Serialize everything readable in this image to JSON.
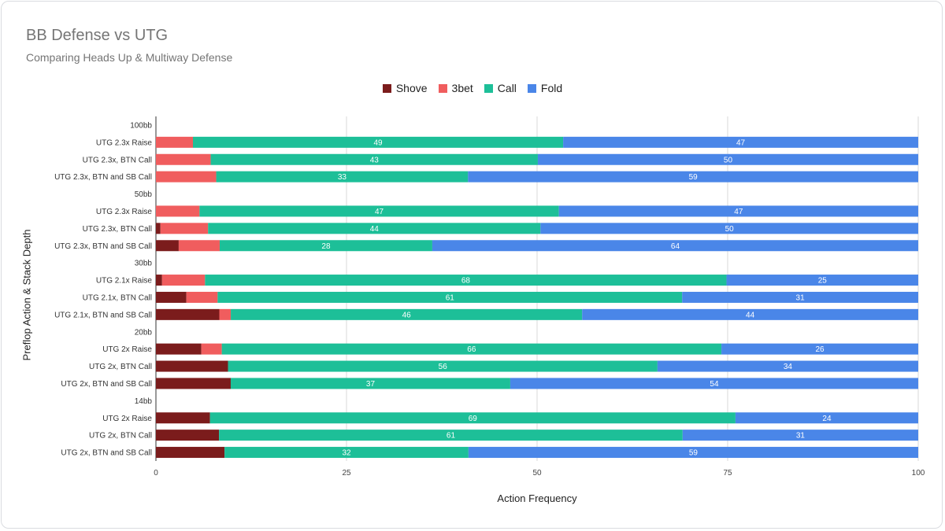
{
  "chart_data": {
    "type": "bar",
    "orientation": "horizontal",
    "stacked": true,
    "title": "BB Defense vs UTG",
    "subtitle": "Comparing Heads Up & Multiway Defense",
    "xlabel": "Action Frequency",
    "ylabel": "Preflop Action & Stack Depth",
    "xlim": [
      0,
      100
    ],
    "xticks": [
      0,
      25,
      50,
      75,
      100
    ],
    "legend_position": "top",
    "categories": [
      "100bb",
      "UTG 2.3x Raise",
      "UTG 2.3x, BTN Call",
      "UTG 2.3x, BTN and SB Call",
      "50bb",
      "UTG 2.3x Raise",
      "UTG 2.3x, BTN Call",
      "UTG 2.3x, BTN and SB Call",
      "30bb",
      "UTG 2.1x Raise",
      "UTG 2.1x, BTN Call",
      "UTG 2.1x, BTN and SB Call",
      "20bb",
      "UTG 2x Raise",
      "UTG 2x, BTN Call",
      "UTG 2x, BTN and SB Call",
      "14bb",
      "UTG 2x Raise",
      "UTG 2x, BTN Call",
      "UTG 2x, BTN and SB Call"
    ],
    "series": [
      {
        "name": "Shove",
        "color": "#7b1c1c",
        "values": [
          null,
          0,
          0,
          0,
          null,
          0,
          0.6,
          3,
          null,
          0.8,
          4,
          8.3,
          null,
          6,
          9.4,
          9.9,
          null,
          7.1,
          8.3,
          9
        ]
      },
      {
        "name": "3bet",
        "color": "#f05d5e",
        "values": [
          null,
          4.9,
          7.2,
          7.9,
          null,
          5.7,
          6.3,
          5.4,
          null,
          5.6,
          4.1,
          1.5,
          null,
          2.7,
          0,
          0,
          null,
          0,
          0,
          0
        ]
      },
      {
        "name": "Call",
        "color": "#1dbf98",
        "values": [
          null,
          49,
          43,
          33,
          null,
          47,
          44,
          28,
          null,
          68,
          61,
          46,
          null,
          66,
          56,
          37,
          null,
          69,
          61,
          32
        ]
      },
      {
        "name": "Fold",
        "color": "#4a86e8",
        "values": [
          null,
          47,
          50,
          59,
          null,
          47,
          50,
          64,
          null,
          25,
          31,
          44,
          null,
          26,
          34,
          54,
          null,
          24,
          31,
          59
        ]
      }
    ],
    "data_labels": {
      "Call": [
        "",
        "49",
        "43",
        "33",
        "",
        "47",
        "44",
        "28",
        "",
        "68",
        "61",
        "46",
        "",
        "66",
        "56",
        "37",
        "",
        "69",
        "61",
        "32"
      ],
      "Fold": [
        "",
        "47",
        "50",
        "59",
        "",
        "47",
        "50",
        "64",
        "",
        "25",
        "31",
        "44",
        "",
        "26",
        "34",
        "54",
        "",
        "24",
        "31",
        "59"
      ]
    }
  }
}
